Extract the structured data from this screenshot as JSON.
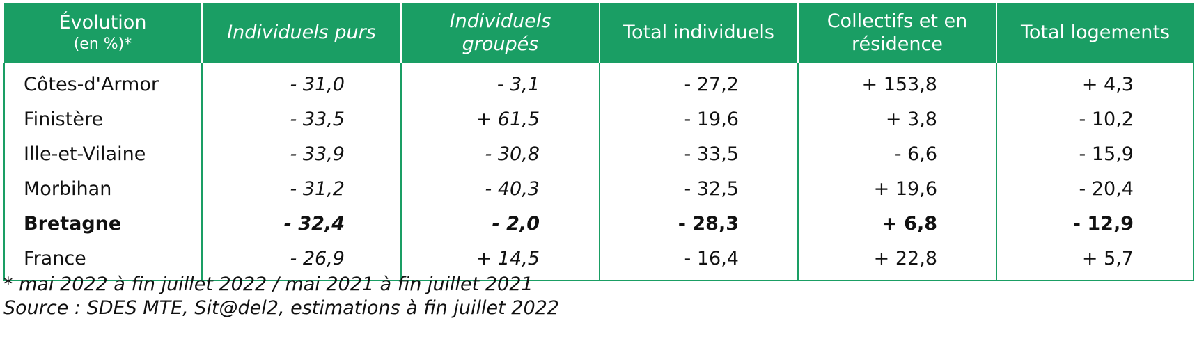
{
  "header": {
    "col0_line1": "Évolution",
    "col0_line2": "(en %)*",
    "col1": "Individuels purs",
    "col2": "Individuels groupés",
    "col3": "Total individuels",
    "col4": "Collectifs et en résidence",
    "col5": "Total logements"
  },
  "rows": [
    {
      "label": "Côtes-d'Armor",
      "values": [
        "- 31,0",
        "- 3,1",
        "- 27,2",
        "+ 153,8",
        "+ 4,3"
      ]
    },
    {
      "label": "Finistère",
      "values": [
        "- 33,5",
        "+ 61,5",
        "- 19,6",
        "+ 3,8",
        "- 10,2"
      ]
    },
    {
      "label": "Ille-et-Vilaine",
      "values": [
        "- 33,9",
        "- 30,8",
        "- 33,5",
        "- 6,6",
        "- 15,9"
      ]
    },
    {
      "label": "Morbihan",
      "values": [
        "- 31,2",
        "- 40,3",
        "- 32,5",
        "+ 19,6",
        "- 20,4"
      ]
    },
    {
      "label": "Bretagne",
      "values": [
        "- 32,4",
        "- 2,0",
        "- 28,3",
        "+ 6,8",
        "- 12,9"
      ],
      "bold": true
    },
    {
      "label": "France",
      "values": [
        "- 26,9",
        "+ 14,5",
        "- 16,4",
        "+ 22,8",
        "+ 5,7"
      ]
    }
  ],
  "notes": {
    "period": "* mai 2022 à fin juillet 2022 / mai 2021 à fin juillet 2021",
    "source": "Source : SDES MTE, Sit@del2, estimations à fin juillet 2022"
  },
  "colors": {
    "header_bg": "#1a9e64",
    "header_text": "#ffffff",
    "border": "#1a9e64"
  }
}
